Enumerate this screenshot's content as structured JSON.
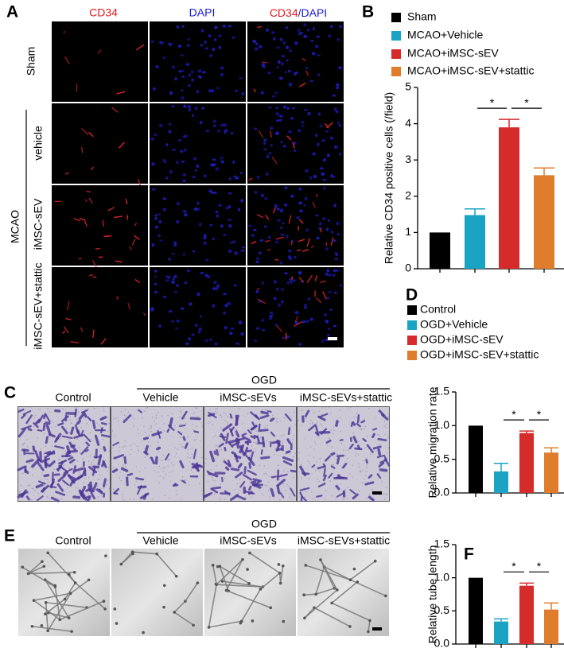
{
  "panel_labels": [
    "A",
    "B",
    "C",
    "D",
    "E",
    "F"
  ],
  "fluorescence": {
    "columns": [
      "CD34",
      "DAPI"
    ],
    "merge": [
      "CD34",
      "/",
      "DAPI"
    ],
    "rows": [
      "Sham",
      "vehicle",
      "iMSC-sEV",
      "iMSC-sEV+stattic"
    ],
    "group": "MCAO"
  },
  "migration": {
    "group": "OGD",
    "columns": [
      "Control",
      "Vehicle",
      "iMSC-sEVs",
      "iMSC-sEVs+stattic"
    ]
  },
  "tube": {
    "group": "OGD",
    "columns": [
      "Control",
      "Vehicle",
      "iMSC-sEVs",
      "iMSC-sEVs+stattic"
    ]
  },
  "chart_data": [
    {
      "type": "bar",
      "categories": [
        "Sham",
        "MCAO+Vehicle",
        "MCAO+iMSC-sEV",
        "MCAO+iMSC-sEV+stattic"
      ],
      "values": [
        1,
        1.48,
        3.9,
        2.58
      ],
      "errors": [
        0,
        0.17,
        0.22,
        0.2
      ],
      "colors": [
        "#000000",
        "#1aa3c2",
        "#d52b2b",
        "#e07d2c"
      ],
      "ylabel": "Relative CD34 positive cells (/field)",
      "ylim": [
        0,
        5
      ],
      "yticks": [
        0,
        1,
        2,
        3,
        4,
        5
      ],
      "annotations": [
        {
          "text": "*",
          "between": [
            1,
            2
          ]
        },
        {
          "text": "*",
          "between": [
            2,
            3
          ]
        }
      ]
    },
    {
      "type": "bar",
      "categories": [
        "Control",
        "OGD+Vehicle",
        "OGD+iMSC-sEV",
        "OGD+iMSC-sEV+stattic"
      ],
      "values": [
        1,
        0.32,
        0.89,
        0.6
      ],
      "errors": [
        0,
        0.12,
        0.03,
        0.07
      ],
      "colors": [
        "#000000",
        "#1aa3c2",
        "#d52b2b",
        "#e07d2c"
      ],
      "ylabel": "Relative  migration rate",
      "ylim": [
        0,
        1.5
      ],
      "yticks": [
        {
          "value": 0,
          "label": "0.0"
        },
        {
          "value": 0.5,
          "label": "0.5"
        },
        {
          "value": 1,
          "label": "1.0"
        },
        {
          "value": 1.5,
          "label": "1.5"
        }
      ],
      "annotations": [
        {
          "text": "*",
          "between": [
            1,
            2
          ]
        },
        {
          "text": "*",
          "between": [
            2,
            3
          ]
        }
      ]
    },
    {
      "type": "bar",
      "values": [
        1,
        0.34,
        0.88,
        0.52
      ],
      "errors": [
        0,
        0.04,
        0.04,
        0.1
      ],
      "colors": [
        "#000000",
        "#1aa3c2",
        "#d52b2b",
        "#e07d2c"
      ],
      "ylabel": "Relative tube length",
      "ylim": [
        0,
        1.5
      ],
      "yticks": [
        {
          "value": 0,
          "label": "0.0"
        },
        {
          "value": 0.5,
          "label": "0.5"
        },
        {
          "value": 1,
          "label": "1.0"
        },
        {
          "value": 1.5,
          "label": "1.5"
        }
      ],
      "annotations": [
        {
          "text": "*",
          "between": [
            1,
            2
          ]
        },
        {
          "text": "*",
          "between": [
            2,
            3
          ]
        }
      ]
    }
  ]
}
